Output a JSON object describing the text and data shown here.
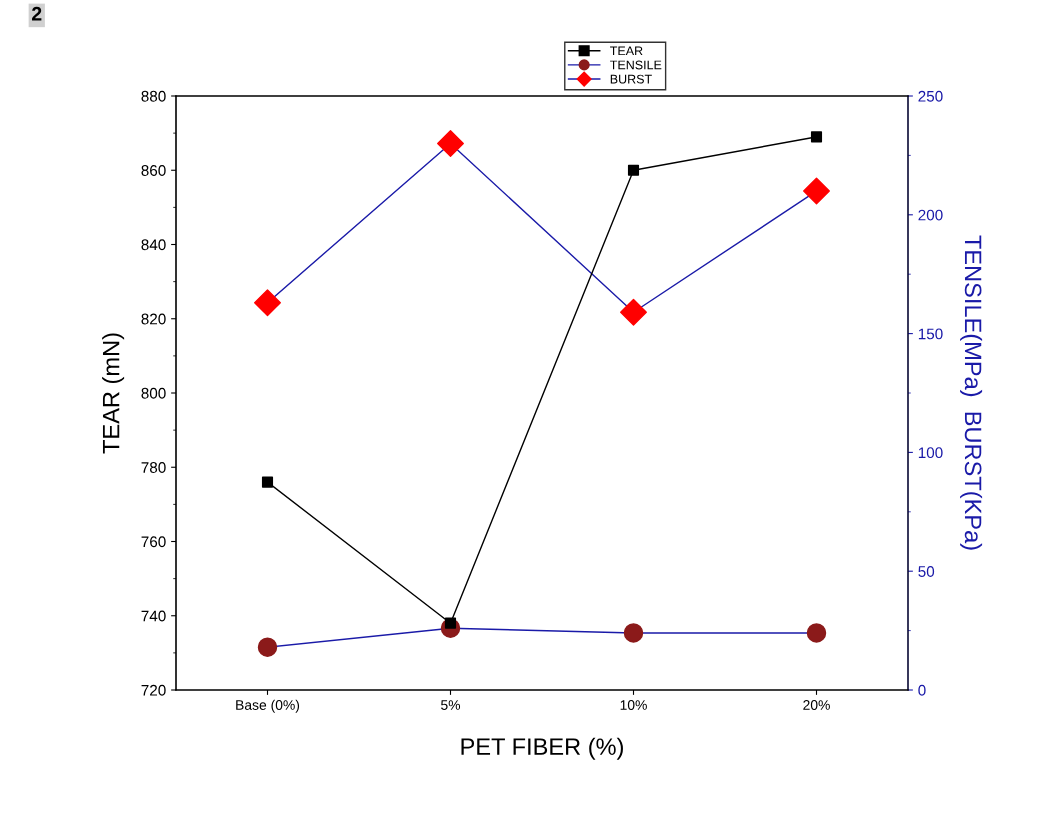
{
  "chart_data": {
    "type": "line",
    "categories": [
      "Base (0%)",
      "5%",
      "10%",
      "20%"
    ],
    "xlabel": "PET FIBER (%)",
    "ylabel": "TEAR (mN)",
    "y2label": "TENSILE(MPa)  BURST(KPa)",
    "ylim": [
      720,
      880
    ],
    "yticks": [
      720,
      740,
      760,
      780,
      800,
      820,
      840,
      860,
      880
    ],
    "y2lim": [
      0,
      250
    ],
    "y2ticks": [
      0,
      50,
      100,
      150,
      200,
      250
    ],
    "series": [
      {
        "name": "TEAR",
        "color": "#000000",
        "marker": "square",
        "values": [
          776,
          738,
          860,
          869
        ]
      },
      {
        "name": "TENSILE",
        "color": "#1a1aa8",
        "colors": [
          "#8b1a1a",
          "#8b1a1a",
          "#8b1a1a",
          "#8b1a1a"
        ],
        "marker": "circle",
        "axis": "y2",
        "values": [
          18,
          26,
          24,
          24
        ]
      },
      {
        "name": "BURST",
        "color": "#1a1aa8",
        "colors": [
          "#ff0000",
          "#ff0000",
          "#ff0000",
          "#ff0000"
        ],
        "marker": "diamond",
        "axis": "y2",
        "values": [
          163,
          230,
          159,
          210
        ]
      }
    ],
    "annotations": [
      "2"
    ],
    "legend": "top",
    "grid": false
  }
}
